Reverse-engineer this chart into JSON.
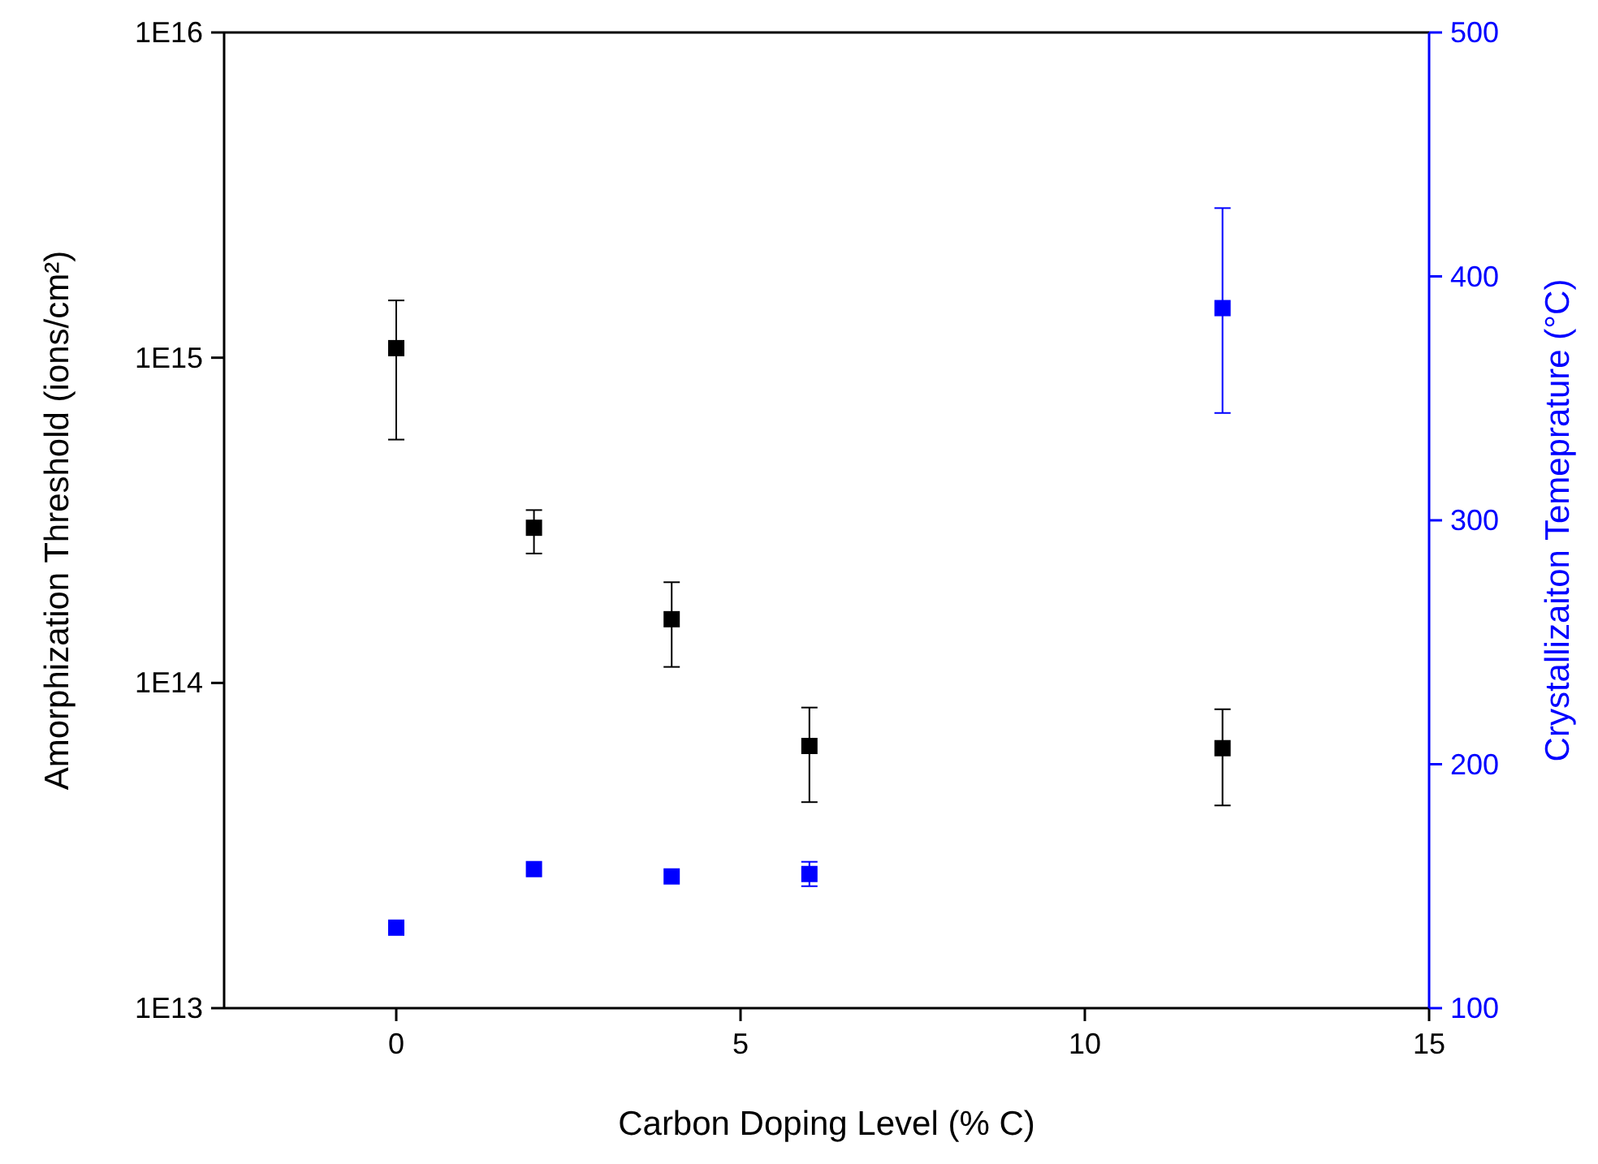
{
  "chart_data": {
    "type": "scatter",
    "xlabel": "Carbon Doping Level (% C)",
    "ylabel": "Amorphization Threshold (ions/cm²)",
    "y2label": "Crystallizaiton Temeprature (°C)",
    "x": [
      0,
      2,
      4,
      6,
      12
    ],
    "xlim": [
      -2.5,
      15
    ],
    "xticks": [
      0,
      5,
      10,
      15
    ],
    "log": "y",
    "ylim": [
      10000000000000.0,
      1e+16
    ],
    "yticks": [
      {
        "value": 10000000000000.0,
        "label": "1E13"
      },
      {
        "value": 100000000000000.0,
        "label": "1E14"
      },
      {
        "value": 1000000000000000.0,
        "label": "1E15"
      },
      {
        "value": 1e+16,
        "label": "1E16"
      }
    ],
    "y2lim": [
      100,
      500
    ],
    "y2ticks": [
      100,
      200,
      300,
      400,
      500
    ],
    "marker": "square",
    "series": [
      {
        "color": "#000000",
        "values": [
          1070000000000000.0,
          300000000000000.0,
          157000000000000.0,
          64000000000000.0,
          63000000000000.0
        ],
        "errors": [
          [
            560000000000000.0,
            1500000000000000.0
          ],
          [
            250000000000000.0,
            340000000000000.0
          ],
          [
            112000000000000.0,
            204000000000000.0
          ],
          [
            43000000000000.0,
            84000000000000.0
          ],
          [
            42000000000000.0,
            83000000000000.0
          ]
        ]
      },
      {
        "color": "#0000ff",
        "axis": "y2",
        "values": [
          133,
          157,
          154,
          155,
          387
        ],
        "errors": [
          null,
          null,
          null,
          5,
          [
            344,
            428
          ]
        ]
      }
    ]
  }
}
